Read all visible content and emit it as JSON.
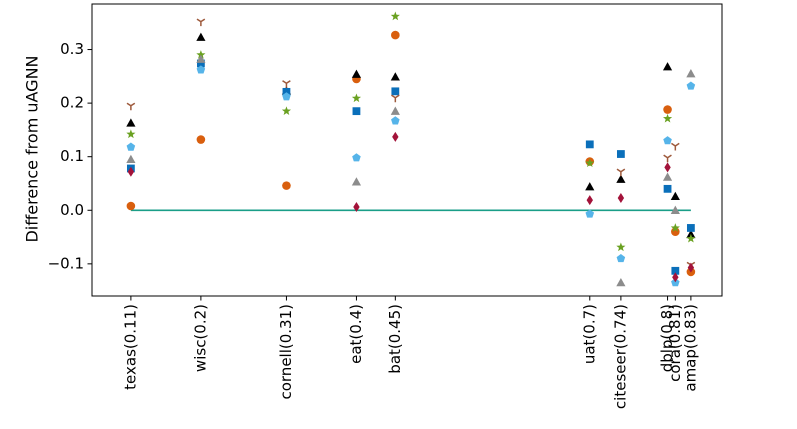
{
  "chart_data": {
    "type": "scatter",
    "title": "",
    "xlabel": "",
    "ylabel": "Difference from uAGNN",
    "ylim": [
      -0.16,
      0.385
    ],
    "xlim": [
      0.06,
      0.87
    ],
    "yticks": [
      -0.1,
      0.0,
      0.1,
      0.2,
      0.3
    ],
    "ytick_labels": [
      "−0.1",
      "0.0",
      "0.1",
      "0.2",
      "0.3"
    ],
    "categories": [
      {
        "label": "texas(0.11)",
        "x": 0.11
      },
      {
        "label": "wisc(0.2)",
        "x": 0.2
      },
      {
        "label": "cornell(0.31)",
        "x": 0.31
      },
      {
        "label": "eat(0.4)",
        "x": 0.4
      },
      {
        "label": "bat(0.45)",
        "x": 0.45
      },
      {
        "label": "uat(0.7)",
        "x": 0.7
      },
      {
        "label": "citeseer(0.74)",
        "x": 0.74
      },
      {
        "label": "dblp(0.8)",
        "x": 0.8
      },
      {
        "label": "cora(0.81)",
        "x": 0.81
      },
      {
        "label": "amap(0.83)",
        "x": 0.83
      }
    ],
    "reference_line": {
      "y": 0.0,
      "color": "#1a9e88"
    },
    "grid": false,
    "legend": "none",
    "series": [
      {
        "marker": "circle",
        "color": "#d95f0e",
        "points": [
          [
            0.11,
            0.008
          ],
          [
            0.2,
            0.132
          ],
          [
            0.31,
            0.046
          ],
          [
            0.4,
            0.245
          ],
          [
            0.45,
            0.327
          ],
          [
            0.7,
            0.091
          ],
          [
            0.8,
            0.188
          ],
          [
            0.81,
            -0.04
          ],
          [
            0.83,
            -0.115
          ]
        ]
      },
      {
        "marker": "triangle-up",
        "color": "#000000",
        "points": [
          [
            0.11,
            0.163
          ],
          [
            0.2,
            0.323
          ],
          [
            0.31,
            0.223
          ],
          [
            0.4,
            0.254
          ],
          [
            0.45,
            0.249
          ],
          [
            0.7,
            0.044
          ],
          [
            0.74,
            0.058
          ],
          [
            0.8,
            0.268
          ],
          [
            0.81,
            0.026
          ],
          [
            0.83,
            -0.045
          ]
        ]
      },
      {
        "marker": "square",
        "color": "#0a6fba",
        "points": [
          [
            0.11,
            0.078
          ],
          [
            0.2,
            0.274
          ],
          [
            0.31,
            0.221
          ],
          [
            0.4,
            0.185
          ],
          [
            0.45,
            0.222
          ],
          [
            0.7,
            0.123
          ],
          [
            0.74,
            0.105
          ],
          [
            0.8,
            0.04
          ],
          [
            0.81,
            -0.113
          ],
          [
            0.83,
            -0.033
          ]
        ]
      },
      {
        "marker": "tri-down",
        "color": "#9e5a3c",
        "points": [
          [
            0.11,
            0.195
          ],
          [
            0.2,
            0.352
          ],
          [
            0.31,
            0.237
          ],
          [
            0.45,
            0.21
          ],
          [
            0.74,
            0.072
          ],
          [
            0.8,
            0.098
          ],
          [
            0.81,
            0.12
          ],
          [
            0.83,
            -0.102
          ]
        ]
      },
      {
        "marker": "star",
        "color": "#6aa121",
        "points": [
          [
            0.11,
            0.142
          ],
          [
            0.2,
            0.29
          ],
          [
            0.31,
            0.185
          ],
          [
            0.4,
            0.209
          ],
          [
            0.45,
            0.362
          ],
          [
            0.7,
            0.088
          ],
          [
            0.74,
            -0.069
          ],
          [
            0.8,
            0.171
          ],
          [
            0.81,
            -0.033
          ],
          [
            0.83,
            -0.053
          ]
        ]
      },
      {
        "marker": "pentagon",
        "color": "#56b4e9",
        "points": [
          [
            0.11,
            0.118
          ],
          [
            0.2,
            0.262
          ],
          [
            0.31,
            0.212
          ],
          [
            0.4,
            0.098
          ],
          [
            0.45,
            0.167
          ],
          [
            0.7,
            -0.007
          ],
          [
            0.74,
            -0.09
          ],
          [
            0.8,
            0.13
          ],
          [
            0.81,
            -0.135
          ],
          [
            0.83,
            0.232
          ]
        ]
      },
      {
        "marker": "triangle-up",
        "color": "#8c8c8c",
        "points": [
          [
            0.11,
            0.095
          ],
          [
            0.2,
            0.282
          ],
          [
            0.4,
            0.053
          ],
          [
            0.45,
            0.185
          ],
          [
            0.74,
            -0.135
          ],
          [
            0.8,
            0.062
          ],
          [
            0.81,
            0.0
          ],
          [
            0.83,
            0.255
          ]
        ]
      },
      {
        "marker": "diamond",
        "color": "#a3133a",
        "points": [
          [
            0.11,
            0.072
          ],
          [
            0.4,
            0.006
          ],
          [
            0.45,
            0.137
          ],
          [
            0.7,
            0.019
          ],
          [
            0.74,
            0.023
          ],
          [
            0.8,
            0.08
          ],
          [
            0.81,
            -0.125
          ],
          [
            0.83,
            -0.107
          ]
        ]
      }
    ]
  }
}
